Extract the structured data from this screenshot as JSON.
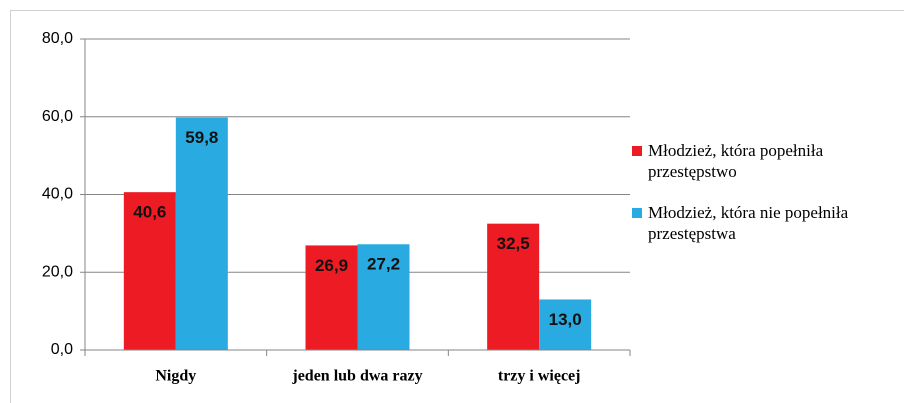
{
  "chart_data": {
    "type": "bar",
    "categories": [
      "Nigdy",
      "jeden lub dwa razy",
      "trzy i więcej"
    ],
    "series": [
      {
        "name": "Młodzież, która popełniła przestępstwo",
        "color": "#ed1c24",
        "values": [
          40.6,
          26.9,
          32.5
        ],
        "value_labels": [
          "40,6",
          "26,9",
          "32,5"
        ]
      },
      {
        "name": "Młodzież, która nie popełniła przestępstwa",
        "color": "#29abe2",
        "values": [
          59.8,
          27.2,
          13.0
        ],
        "value_labels": [
          "59,8",
          "27,2",
          "13,0"
        ]
      }
    ],
    "ylim": [
      0,
      80
    ],
    "yticks": [
      {
        "value": 0,
        "label": "0,0"
      },
      {
        "value": 20,
        "label": "20,0"
      },
      {
        "value": 40,
        "label": "40,0"
      },
      {
        "value": 60,
        "label": "60,0"
      },
      {
        "value": 80,
        "label": "80,0"
      }
    ],
    "grid": true,
    "legend": "right"
  }
}
